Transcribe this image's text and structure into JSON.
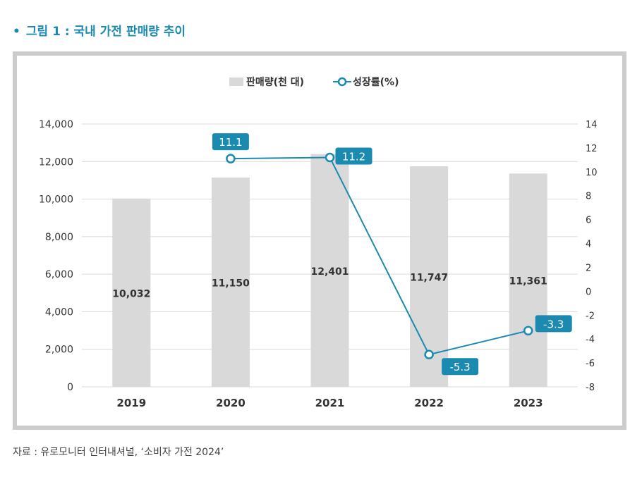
{
  "figure": {
    "title": "그림 1 : 국내 가전 판매량 추이",
    "bullet": "•",
    "source": "자료 : 유로모니터 인터내셔널, ‘소비자 가전 2024’"
  },
  "colors": {
    "bar": "#d9d9d9",
    "line": "#1a8ab0",
    "label_bg": "#1a8ab0",
    "title": "#1a8ab0"
  },
  "chart_data": {
    "type": "bar",
    "categories": [
      "2019",
      "2020",
      "2021",
      "2022",
      "2023"
    ],
    "series": [
      {
        "name": "판매량(천 대)",
        "type": "bar",
        "axis": "left",
        "values": [
          10032,
          11150,
          12401,
          11747,
          11361
        ],
        "labels": [
          "10,032",
          "11,150",
          "12,401",
          "11,747",
          "11,361"
        ]
      },
      {
        "name": "성장률(%)",
        "type": "line",
        "axis": "right",
        "values": [
          null,
          11.1,
          11.2,
          -5.3,
          -3.3
        ],
        "labels": [
          "",
          "11.1",
          "11.2",
          "-5.3",
          "-3.3"
        ]
      }
    ],
    "left_axis": {
      "min": 0,
      "max": 14000,
      "ticks": [
        0,
        2000,
        4000,
        6000,
        8000,
        10000,
        12000,
        14000
      ],
      "tick_labels": [
        "0",
        "2,000",
        "4,000",
        "6,000",
        "8,000",
        "10,000",
        "12,000",
        "14,000"
      ]
    },
    "right_axis": {
      "min": -8,
      "max": 14,
      "ticks": [
        -8,
        -6,
        -4,
        -2,
        0,
        2,
        4,
        6,
        8,
        10,
        12,
        14
      ],
      "tick_labels": [
        "-8",
        "-6",
        "-4",
        "-2",
        "0",
        "2",
        "4",
        "6",
        "8",
        "10",
        "12",
        "14"
      ]
    },
    "legend_position": "top-center",
    "grid": true
  }
}
